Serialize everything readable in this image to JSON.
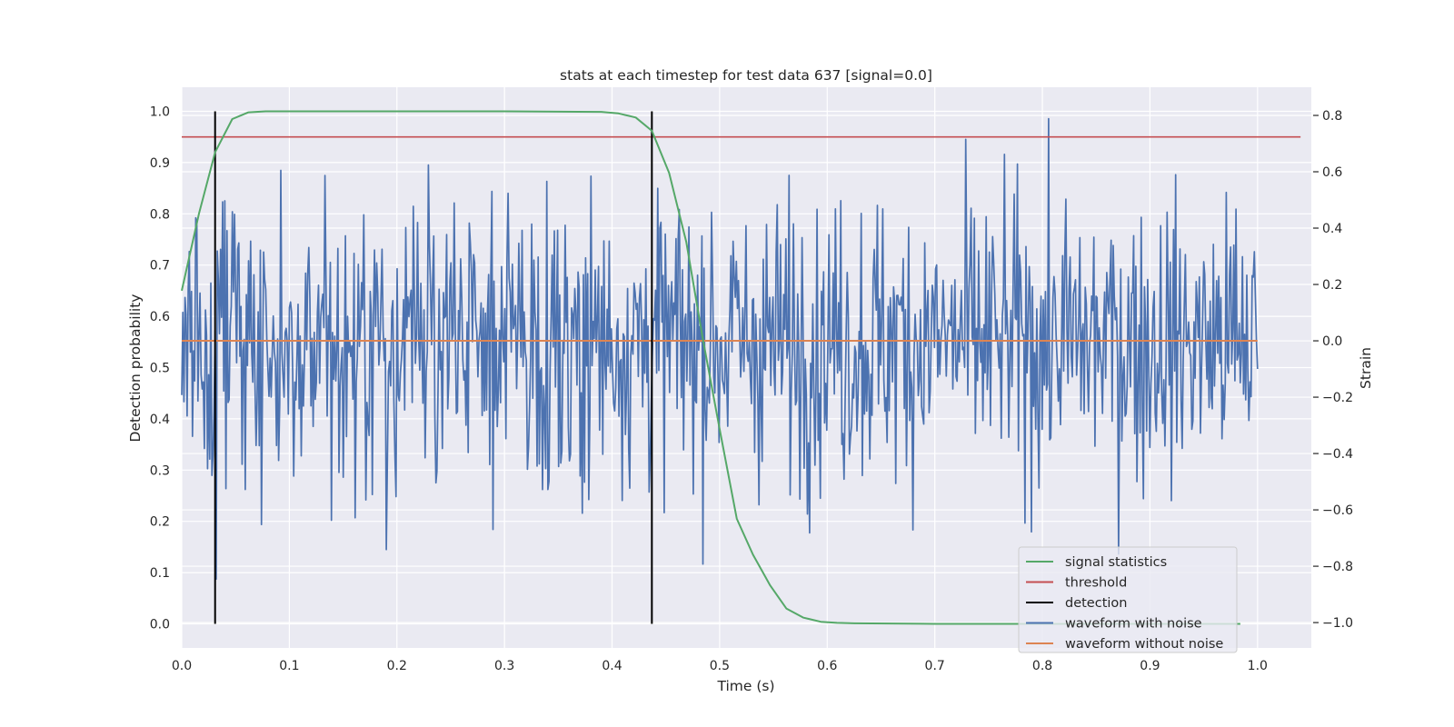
{
  "chart_data": {
    "type": "line",
    "title": "stats at each timestep for test data 637 [signal=0.0]",
    "xlabel": "Time (s)",
    "ylabel_left": "Detection probability",
    "ylabel_right": "Strain",
    "xlim": [
      0.0,
      1.05
    ],
    "ylim_left": [
      -0.047,
      1.047
    ],
    "ylim_right": [
      -1.09,
      0.9
    ],
    "xticks": [
      "0.0",
      "0.1",
      "0.2",
      "0.3",
      "0.4",
      "0.5",
      "0.6",
      "0.7",
      "0.8",
      "0.9",
      "1.0"
    ],
    "xtick_values": [
      0.0,
      0.1,
      0.2,
      0.3,
      0.4,
      0.5,
      0.6,
      0.7,
      0.8,
      0.9,
      1.0
    ],
    "yticks_left": [
      "0.0",
      "0.1",
      "0.2",
      "0.3",
      "0.4",
      "0.5",
      "0.6",
      "0.7",
      "0.8",
      "0.9",
      "1.0"
    ],
    "ytick_values_left": [
      0.0,
      0.1,
      0.2,
      0.3,
      0.4,
      0.5,
      0.6,
      0.7,
      0.8,
      0.9,
      1.0
    ],
    "yticks_right": [
      "−1.0",
      "−0.8",
      "−0.6",
      "−0.4",
      "−0.2",
      "0.0",
      "0.2",
      "0.4",
      "0.6",
      "0.8"
    ],
    "ytick_values_right": [
      -1.0,
      -0.8,
      -0.6,
      -0.4,
      -0.2,
      0.0,
      0.2,
      0.4,
      0.6,
      0.8
    ],
    "grid": true,
    "legend_position": "bottom-right",
    "series": [
      {
        "name": "signal statistics",
        "axis": "left",
        "color": "#55a868",
        "x": [
          0.0,
          0.016,
          0.031,
          0.047,
          0.062,
          0.078,
          0.094,
          0.2,
          0.3,
          0.39,
          0.406,
          0.422,
          0.437,
          0.453,
          0.469,
          0.484,
          0.5,
          0.516,
          0.531,
          0.547,
          0.562,
          0.578,
          0.594,
          0.609,
          0.625,
          0.7,
          0.8,
          0.9,
          0.984
        ],
        "y": [
          0.65,
          0.8,
          0.92,
          0.985,
          0.998,
          1.0,
          1.0,
          1.0,
          1.0,
          0.999,
          0.996,
          0.988,
          0.962,
          0.88,
          0.745,
          0.56,
          0.38,
          0.205,
          0.135,
          0.075,
          0.03,
          0.012,
          0.004,
          0.002,
          0.001,
          0.0,
          0.0,
          0.0,
          0.0
        ]
      },
      {
        "name": "threshold",
        "axis": "left",
        "color": "#c44e52",
        "x": [
          0.0,
          1.04
        ],
        "y": [
          0.95,
          0.95
        ]
      },
      {
        "name": "detection",
        "axis": "left",
        "color": "#000000",
        "x": [
          0.031,
          0.437
        ],
        "y": [
          1.0,
          1.0
        ]
      },
      {
        "name": "waveform with noise",
        "axis": "right",
        "color": "#4c72b0",
        "n_points": 1000,
        "x_range": [
          0.0,
          1.0
        ],
        "std": 0.25,
        "max": 0.83,
        "min": -1.0
      },
      {
        "name": "waveform without noise",
        "axis": "right",
        "color": "#dd8452",
        "x": [
          0.0,
          1.0
        ],
        "y": [
          0.0,
          0.0
        ]
      }
    ]
  }
}
